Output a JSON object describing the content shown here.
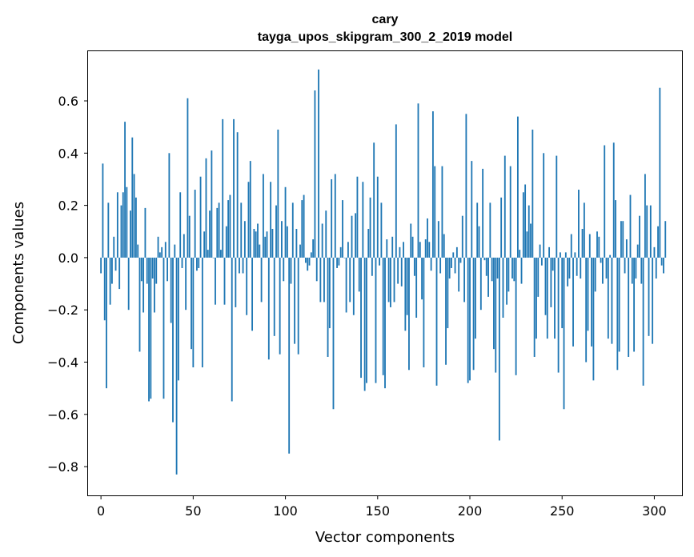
{
  "colors": {
    "bar": "#1f77b4",
    "axis": "#000000",
    "background": "#ffffff"
  },
  "chart_data": {
    "type": "bar",
    "title_line1": "cary",
    "title_line2": "tayga_upos_skipgram_300_2_2019 model",
    "xlabel": "Vector components",
    "ylabel": "Components values",
    "xlim": [
      -7,
      315
    ],
    "ylim": [
      -0.91,
      0.79
    ],
    "grid": false,
    "x_ticks": [
      0,
      50,
      100,
      150,
      200,
      250,
      300
    ],
    "x_tick_labels": [
      "0",
      "50",
      "100",
      "150",
      "200",
      "250",
      "300"
    ],
    "y_ticks": [
      0.6,
      0.4,
      0.2,
      0.0,
      -0.2,
      -0.4,
      -0.6,
      -0.8
    ],
    "y_tick_labels": [
      "0.6",
      "0.4",
      "0.2",
      "0.0",
      "−0.2",
      "−0.4",
      "−0.6",
      "−0.8"
    ],
    "values": [
      -0.06,
      0.36,
      -0.24,
      -0.5,
      0.21,
      -0.18,
      -0.1,
      0.08,
      -0.05,
      0.25,
      -0.12,
      0.2,
      0.25,
      0.52,
      0.27,
      -0.2,
      0.18,
      0.46,
      0.32,
      0.23,
      0.05,
      -0.36,
      -0.09,
      -0.21,
      0.19,
      -0.1,
      -0.55,
      -0.54,
      -0.08,
      -0.21,
      -0.1,
      0.08,
      0.02,
      0.04,
      -0.54,
      0.06,
      -0.09,
      0.4,
      -0.25,
      -0.63,
      0.05,
      -0.83,
      -0.47,
      0.25,
      -0.04,
      0.09,
      -0.2,
      0.61,
      0.16,
      -0.35,
      -0.42,
      0.26,
      -0.05,
      -0.04,
      0.31,
      -0.42,
      0.1,
      0.38,
      0.03,
      0.18,
      0.41,
      0.0,
      -0.18,
      0.19,
      0.21,
      0.03,
      0.53,
      -0.18,
      0.12,
      0.22,
      0.24,
      -0.55,
      0.53,
      -0.19,
      0.48,
      -0.06,
      0.21,
      -0.06,
      0.14,
      -0.22,
      0.29,
      0.37,
      -0.28,
      0.11,
      0.1,
      0.13,
      0.05,
      -0.17,
      0.32,
      0.08,
      0.1,
      -0.39,
      0.29,
      0.11,
      -0.3,
      0.2,
      0.49,
      -0.37,
      0.14,
      -0.09,
      0.27,
      0.12,
      -0.75,
      -0.1,
      0.21,
      -0.33,
      0.11,
      -0.37,
      0.05,
      0.22,
      0.24,
      -0.02,
      -0.05,
      -0.03,
      0.02,
      0.07,
      0.64,
      -0.09,
      0.72,
      -0.17,
      0.13,
      -0.17,
      0.18,
      -0.38,
      -0.27,
      0.3,
      -0.58,
      0.32,
      -0.04,
      -0.03,
      0.04,
      0.22,
      0.0,
      -0.21,
      0.06,
      -0.17,
      0.16,
      -0.22,
      0.17,
      0.31,
      -0.13,
      -0.46,
      0.29,
      -0.51,
      -0.48,
      0.11,
      0.23,
      -0.07,
      0.44,
      -0.48,
      0.31,
      -0.03,
      0.21,
      -0.45,
      -0.5,
      0.07,
      -0.17,
      -0.19,
      0.08,
      -0.17,
      0.51,
      -0.1,
      0.04,
      -0.11,
      0.06,
      -0.28,
      -0.22,
      -0.43,
      0.13,
      0.08,
      -0.07,
      -0.23,
      0.59,
      0.06,
      -0.16,
      -0.42,
      0.07,
      0.15,
      0.06,
      -0.05,
      0.56,
      0.35,
      -0.49,
      0.14,
      -0.06,
      0.35,
      0.09,
      -0.41,
      -0.27,
      -0.08,
      -0.04,
      0.02,
      -0.06,
      0.04,
      -0.13,
      -0.02,
      0.16,
      -0.17,
      0.55,
      -0.48,
      -0.47,
      0.37,
      -0.43,
      -0.31,
      0.21,
      0.12,
      -0.2,
      0.34,
      -0.01,
      -0.07,
      -0.15,
      0.21,
      -0.09,
      -0.35,
      -0.44,
      -0.08,
      -0.7,
      0.23,
      -0.23,
      0.39,
      -0.18,
      -0.13,
      0.35,
      -0.08,
      -0.09,
      -0.45,
      0.54,
      0.03,
      -0.1,
      0.25,
      0.28,
      0.1,
      0.2,
      0.13,
      0.49,
      -0.38,
      -0.31,
      -0.15,
      0.05,
      -0.03,
      0.4,
      -0.22,
      -0.31,
      0.04,
      -0.19,
      -0.05,
      -0.31,
      0.39,
      -0.44,
      0.02,
      -0.27,
      -0.58,
      0.02,
      -0.11,
      -0.08,
      0.09,
      -0.34,
      0.02,
      -0.07,
      0.26,
      -0.08,
      0.11,
      0.21,
      -0.4,
      -0.28,
      0.09,
      -0.34,
      -0.47,
      -0.13,
      0.1,
      0.08,
      -0.02,
      -0.1,
      0.43,
      -0.08,
      -0.31,
      0.01,
      -0.33,
      0.44,
      0.22,
      -0.43,
      -0.36,
      0.14,
      0.14,
      -0.06,
      0.07,
      -0.38,
      0.24,
      -0.1,
      -0.36,
      -0.08,
      0.05,
      0.16,
      -0.1,
      -0.49,
      0.32,
      0.2,
      -0.3,
      0.2,
      -0.33,
      0.04,
      -0.08,
      0.12,
      0.65,
      -0.03,
      -0.06,
      0.14
    ]
  }
}
